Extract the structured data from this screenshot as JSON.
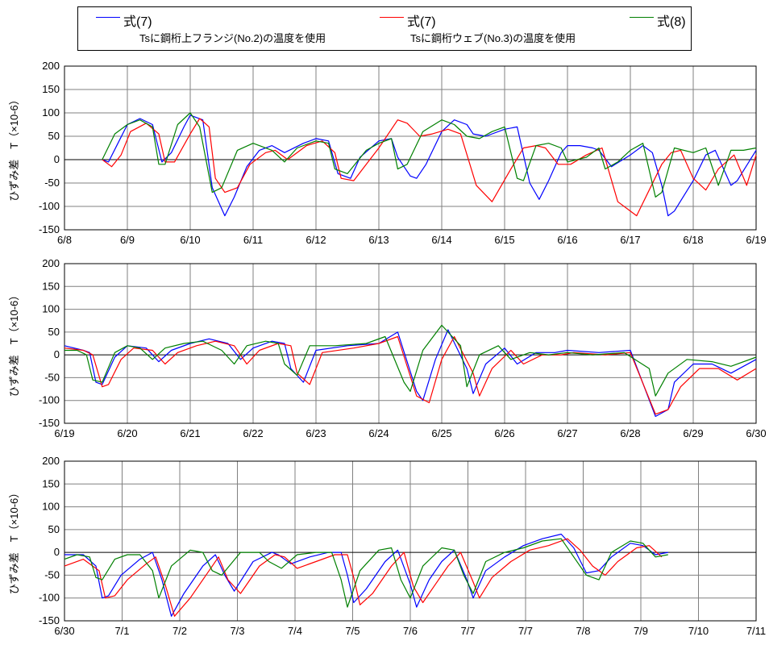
{
  "legend": {
    "items": [
      {
        "label": "式(7)",
        "note": "Tsに鋼桁上フランジ(No.2)の温度を使用",
        "color": "#0000ff"
      },
      {
        "label": "式(7)",
        "note": "Tsに鋼桁ウェブ(No.3)の温度を使用",
        "color": "#ff0000"
      },
      {
        "label": "式(8)",
        "note": "",
        "color": "#008000"
      }
    ]
  },
  "chart_data": [
    {
      "type": "line",
      "ylabel": "ひずみ差　T（×10-6）",
      "ylim": [
        -150,
        200
      ],
      "yticks": [
        -150,
        -100,
        -50,
        0,
        50,
        100,
        150,
        200
      ],
      "xlim": [
        0,
        11
      ],
      "xticks": [
        "6/8",
        "6/9",
        "6/10",
        "6/11",
        "6/12",
        "6/13",
        "6/14",
        "6/15",
        "6/16",
        "6/17",
        "6/18",
        "6/19"
      ],
      "grid": true,
      "series": [
        {
          "name": "式(7) Tsに鋼桁上フランジ(No.2)の温度を使用",
          "color": "#0000ff",
          "x": [
            0.6,
            0.7,
            0.85,
            1.0,
            1.2,
            1.4,
            1.55,
            1.7,
            1.9,
            2.0,
            2.2,
            2.35,
            2.55,
            2.7,
            2.9,
            3.1,
            3.3,
            3.5,
            3.8,
            4.0,
            4.2,
            4.35,
            4.55,
            4.7,
            5.0,
            5.2,
            5.3,
            5.5,
            5.6,
            5.75,
            6.0,
            6.2,
            6.4,
            6.5,
            6.7,
            7.0,
            7.2,
            7.4,
            7.55,
            7.7,
            7.9,
            8.0,
            8.2,
            8.4,
            8.5,
            8.7,
            9.0,
            9.2,
            9.35,
            9.5,
            9.6,
            9.7,
            10.0,
            10.2,
            10.35,
            10.6,
            10.7,
            11.0
          ],
          "y": [
            0,
            -5,
            35,
            75,
            88,
            75,
            -5,
            15,
            70,
            95,
            85,
            -60,
            -120,
            -80,
            -15,
            20,
            30,
            15,
            35,
            45,
            40,
            -30,
            -40,
            5,
            40,
            45,
            5,
            -35,
            -40,
            -10,
            60,
            85,
            75,
            55,
            50,
            65,
            70,
            -50,
            -85,
            -45,
            15,
            30,
            30,
            25,
            20,
            -15,
            10,
            30,
            15,
            -55,
            -120,
            -110,
            -45,
            10,
            20,
            -55,
            -45,
            20
          ]
        },
        {
          "name": "式(7) Tsに鋼桁ウェブ(No.3)の温度を使用",
          "color": "#ff0000",
          "x": [
            0.6,
            0.75,
            0.9,
            1.05,
            1.3,
            1.5,
            1.6,
            1.75,
            2.0,
            2.15,
            2.3,
            2.4,
            2.55,
            2.75,
            2.95,
            3.2,
            3.35,
            3.55,
            3.85,
            4.1,
            4.3,
            4.4,
            4.6,
            4.8,
            5.0,
            5.3,
            5.45,
            5.65,
            5.85,
            6.1,
            6.3,
            6.55,
            6.8,
            7.1,
            7.3,
            7.5,
            7.65,
            7.85,
            8.05,
            8.3,
            8.55,
            8.8,
            9.1,
            9.3,
            9.5,
            9.65,
            9.8,
            10.0,
            10.2,
            10.4,
            10.65,
            10.85,
            11.0
          ],
          "y": [
            0,
            -15,
            10,
            60,
            78,
            55,
            -5,
            -5,
            55,
            88,
            70,
            -40,
            -70,
            -60,
            -10,
            15,
            20,
            0,
            30,
            40,
            15,
            -40,
            -45,
            -10,
            25,
            85,
            78,
            50,
            55,
            65,
            55,
            -55,
            -90,
            -20,
            25,
            30,
            25,
            -10,
            -10,
            10,
            25,
            -90,
            -120,
            -65,
            -10,
            15,
            20,
            -40,
            -65,
            -20,
            10,
            -55,
            10
          ]
        },
        {
          "name": "式(8)",
          "color": "#008000",
          "x": [
            0.6,
            0.8,
            1.0,
            1.2,
            1.4,
            1.5,
            1.6,
            1.8,
            2.0,
            2.15,
            2.35,
            2.5,
            2.75,
            3.0,
            3.3,
            3.5,
            3.7,
            4.0,
            4.2,
            4.3,
            4.5,
            4.8,
            5.0,
            5.2,
            5.3,
            5.45,
            5.7,
            6.0,
            6.2,
            6.4,
            6.6,
            6.8,
            7.0,
            7.2,
            7.3,
            7.5,
            7.7,
            7.9,
            8.0,
            8.3,
            8.5,
            8.6,
            8.8,
            9.0,
            9.2,
            9.4,
            9.5,
            9.7,
            10.0,
            10.2,
            10.4,
            10.6,
            10.8,
            11.0
          ],
          "y": [
            0,
            55,
            75,
            85,
            70,
            -10,
            -10,
            75,
            100,
            70,
            -70,
            -60,
            20,
            35,
            20,
            -5,
            25,
            40,
            35,
            -20,
            -30,
            20,
            35,
            45,
            -20,
            -10,
            60,
            85,
            75,
            50,
            45,
            60,
            70,
            -40,
            -45,
            30,
            35,
            25,
            -5,
            5,
            25,
            -20,
            -5,
            20,
            35,
            -80,
            -70,
            25,
            15,
            25,
            -55,
            20,
            20,
            25
          ]
        }
      ]
    },
    {
      "type": "line",
      "ylabel": "ひずみ差　T（×10-6）",
      "ylim": [
        -150,
        200
      ],
      "yticks": [
        -150,
        -100,
        -50,
        0,
        50,
        100,
        150,
        200
      ],
      "xlim": [
        0,
        11
      ],
      "xticks": [
        "6/19",
        "6/20",
        "6/21",
        "6/22",
        "6/23",
        "6/24",
        "6/25",
        "6/26",
        "6/27",
        "6/28",
        "6/29",
        "6/30"
      ],
      "grid": true,
      "series": [
        {
          "name": "式(7) Tsに鋼桁上フランジ(No.2)の温度を使用",
          "color": "#0000ff",
          "x": [
            0.0,
            0.3,
            0.4,
            0.5,
            0.6,
            0.8,
            1.0,
            1.3,
            1.5,
            1.7,
            2.0,
            2.3,
            2.6,
            2.8,
            3.0,
            3.3,
            3.5,
            3.6,
            3.8,
            4.0,
            4.5,
            5.0,
            5.3,
            5.6,
            5.7,
            5.9,
            6.1,
            6.4,
            6.5,
            6.7,
            7.0,
            7.2,
            7.5,
            7.8,
            8.0,
            8.5,
            9.0,
            9.4,
            9.6,
            9.7,
            10.0,
            10.3,
            10.6,
            11.0
          ],
          "y": [
            20,
            10,
            5,
            -60,
            -65,
            -5,
            20,
            15,
            -15,
            10,
            25,
            35,
            25,
            -10,
            15,
            30,
            25,
            -30,
            -60,
            10,
            20,
            25,
            50,
            -80,
            -100,
            -10,
            55,
            -30,
            -85,
            -20,
            15,
            -20,
            5,
            5,
            10,
            5,
            10,
            -135,
            -120,
            -60,
            -20,
            -20,
            -40,
            -10
          ]
        },
        {
          "name": "式(7) Tsに鋼桁ウェブ(No.3)の温度を使用",
          "color": "#ff0000",
          "x": [
            0.0,
            0.3,
            0.45,
            0.6,
            0.7,
            0.9,
            1.1,
            1.4,
            1.6,
            1.8,
            2.1,
            2.4,
            2.7,
            2.9,
            3.1,
            3.4,
            3.6,
            3.7,
            3.9,
            4.1,
            4.6,
            5.0,
            5.3,
            5.6,
            5.8,
            6.0,
            6.2,
            6.5,
            6.6,
            6.8,
            7.1,
            7.3,
            7.6,
            7.9,
            8.1,
            8.6,
            9.0,
            9.4,
            9.6,
            9.8,
            10.1,
            10.4,
            10.7,
            11.0
          ],
          "y": [
            15,
            10,
            0,
            -70,
            -65,
            -10,
            15,
            10,
            -20,
            5,
            20,
            30,
            20,
            -20,
            10,
            25,
            20,
            -40,
            -65,
            5,
            15,
            25,
            40,
            -90,
            -105,
            -10,
            40,
            -40,
            -90,
            -30,
            10,
            -20,
            0,
            0,
            5,
            0,
            5,
            -130,
            -120,
            -70,
            -30,
            -30,
            -55,
            -30
          ]
        },
        {
          "name": "式(8)",
          "color": "#008000",
          "x": [
            0.0,
            0.2,
            0.35,
            0.45,
            0.6,
            0.8,
            1.0,
            1.2,
            1.4,
            1.6,
            1.9,
            2.2,
            2.5,
            2.7,
            2.9,
            3.2,
            3.4,
            3.5,
            3.7,
            3.9,
            4.3,
            4.8,
            5.1,
            5.4,
            5.5,
            5.7,
            6.0,
            6.3,
            6.4,
            6.6,
            6.9,
            7.1,
            7.4,
            7.7,
            8.0,
            8.4,
            8.9,
            9.3,
            9.4,
            9.6,
            9.9,
            10.3,
            10.6,
            11.0
          ],
          "y": [
            10,
            10,
            0,
            -55,
            -60,
            5,
            20,
            15,
            -10,
            15,
            25,
            30,
            10,
            -20,
            20,
            30,
            25,
            -20,
            -45,
            20,
            20,
            25,
            40,
            -60,
            -80,
            10,
            65,
            20,
            -70,
            0,
            20,
            -10,
            5,
            0,
            5,
            0,
            5,
            -30,
            -90,
            -40,
            -10,
            -15,
            -25,
            -5
          ]
        }
      ]
    },
    {
      "type": "line",
      "ylabel": "ひずみ差　T（×10-6）",
      "ylim": [
        -150,
        200
      ],
      "yticks": [
        -150,
        -100,
        -50,
        0,
        50,
        100,
        150,
        200
      ],
      "xlim": [
        0,
        11
      ],
      "xticks": [
        "6/30",
        "7/1",
        "7/2",
        "7/3",
        "7/4",
        "7/5",
        "7/6",
        "7/7",
        "7/7",
        "7/8",
        "7/9",
        "7/10",
        "7/11"
      ],
      "grid": true,
      "series": [
        {
          "name": "式(7) Tsに鋼桁上フランジ(No.2)の温度を使用",
          "color": "#0000ff",
          "x": [
            0.0,
            0.3,
            0.5,
            0.6,
            0.7,
            0.9,
            1.2,
            1.4,
            1.55,
            1.7,
            1.9,
            2.2,
            2.4,
            2.55,
            2.7,
            3.0,
            3.3,
            3.4,
            3.6,
            3.9,
            4.2,
            4.4,
            4.5,
            4.6,
            4.8,
            5.1,
            5.3,
            5.5,
            5.6,
            5.8,
            6.0,
            6.2,
            6.4,
            6.5,
            6.7,
            7.0,
            7.3,
            7.6,
            7.9,
            8.1,
            8.3,
            8.5,
            8.7,
            9.0,
            9.2,
            9.4,
            9.6
          ],
          "y": [
            -5,
            -5,
            -30,
            -100,
            -95,
            -50,
            -15,
            0,
            -60,
            -140,
            -90,
            -30,
            -5,
            -50,
            -85,
            -20,
            0,
            -5,
            -25,
            -10,
            0,
            0,
            -50,
            -110,
            -80,
            -20,
            5,
            -70,
            -120,
            -60,
            -20,
            5,
            -60,
            -100,
            -40,
            -10,
            15,
            30,
            40,
            10,
            -45,
            -40,
            -10,
            20,
            15,
            -5,
            0
          ]
        },
        {
          "name": "式(7) Tsに鋼桁ウェブ(No.3)の温度を使用",
          "color": "#ff0000",
          "x": [
            0.0,
            0.3,
            0.55,
            0.65,
            0.8,
            1.0,
            1.3,
            1.45,
            1.6,
            1.75,
            2.0,
            2.3,
            2.45,
            2.6,
            2.8,
            3.1,
            3.35,
            3.5,
            3.7,
            4.0,
            4.3,
            4.5,
            4.6,
            4.7,
            4.9,
            5.2,
            5.4,
            5.55,
            5.7,
            5.9,
            6.1,
            6.3,
            6.5,
            6.6,
            6.8,
            7.1,
            7.4,
            7.7,
            8.0,
            8.2,
            8.4,
            8.6,
            8.8,
            9.1,
            9.3,
            9.5
          ],
          "y": [
            -30,
            -15,
            -40,
            -100,
            -95,
            -60,
            -25,
            -10,
            -70,
            -140,
            -100,
            -40,
            -10,
            -60,
            -90,
            -30,
            -5,
            -10,
            -35,
            -20,
            -5,
            -5,
            -55,
            -115,
            -90,
            -30,
            0,
            -75,
            -110,
            -70,
            -30,
            0,
            -65,
            -100,
            -55,
            -20,
            5,
            15,
            30,
            5,
            -30,
            -50,
            -20,
            10,
            15,
            -10
          ]
        },
        {
          "name": "式(8)",
          "color": "#008000",
          "x": [
            0.0,
            0.2,
            0.4,
            0.5,
            0.6,
            0.8,
            1.0,
            1.2,
            1.4,
            1.5,
            1.7,
            2.0,
            2.2,
            2.35,
            2.5,
            2.8,
            3.1,
            3.25,
            3.45,
            3.7,
            4.0,
            4.25,
            4.4,
            4.5,
            4.7,
            5.0,
            5.2,
            5.35,
            5.5,
            5.7,
            6.0,
            6.2,
            6.35,
            6.5,
            6.7,
            7.0,
            7.3,
            7.6,
            7.9,
            8.1,
            8.3,
            8.5,
            8.7,
            9.0,
            9.2,
            9.4,
            9.6
          ],
          "y": [
            -15,
            -5,
            -10,
            -55,
            -60,
            -15,
            -5,
            -5,
            -40,
            -100,
            -30,
            5,
            0,
            -40,
            -50,
            0,
            0,
            -20,
            -35,
            -5,
            0,
            0,
            -60,
            -120,
            -40,
            5,
            10,
            -60,
            -100,
            -30,
            10,
            5,
            -50,
            -90,
            -20,
            0,
            10,
            25,
            30,
            -10,
            -50,
            -60,
            0,
            25,
            20,
            -10,
            -5
          ]
        }
      ]
    }
  ]
}
